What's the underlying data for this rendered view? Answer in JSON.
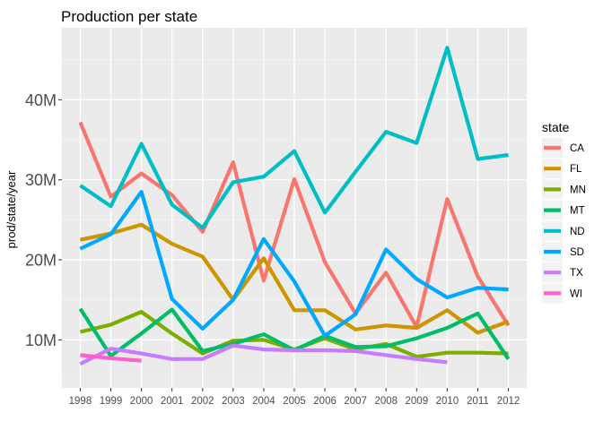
{
  "chart_data": {
    "type": "line",
    "title": "Production per state",
    "xlabel": "",
    "ylabel": "prod/state/year",
    "x": [
      1998,
      1999,
      2000,
      2001,
      2002,
      2003,
      2004,
      2005,
      2006,
      2007,
      2008,
      2009,
      2010,
      2011,
      2012
    ],
    "x_tick_labels": [
      "1998",
      "1999",
      "2000",
      "2001",
      "2002",
      "2003",
      "2004",
      "2005",
      "2006",
      "2007",
      "2008",
      "2009",
      "2010",
      "2011",
      "2012"
    ],
    "y_ticks": [
      10000000,
      20000000,
      30000000,
      40000000
    ],
    "y_tick_labels": [
      "10M",
      "20M",
      "30M",
      "40M"
    ],
    "ylim": [
      4000000,
      49000000
    ],
    "grid": true,
    "legend_title": "state",
    "legend_position": "right",
    "series": [
      {
        "name": "CA",
        "color": "#F8766D",
        "values": [
          37200000,
          27900000,
          30800000,
          28100000,
          23500000,
          32200000,
          17400000,
          30100000,
          19700000,
          13300000,
          18400000,
          11600000,
          27600000,
          17900000,
          11800000
        ]
      },
      {
        "name": "FL",
        "color": "#CD9600",
        "values": [
          22500000,
          23300000,
          24400000,
          22000000,
          20400000,
          15000000,
          20200000,
          13700000,
          13700000,
          11300000,
          11800000,
          11500000,
          13700000,
          10900000,
          12300000
        ]
      },
      {
        "name": "MN",
        "color": "#7CAE00",
        "values": [
          11000000,
          11900000,
          13500000,
          10800000,
          8300000,
          9900000,
          10000000,
          8800000,
          10200000,
          8800000,
          9500000,
          7900000,
          8400000,
          8400000,
          8300000
        ]
      },
      {
        "name": "MT",
        "color": "#00BE67",
        "values": [
          13900000,
          8000000,
          10800000,
          13800000,
          8600000,
          9500000,
          10700000,
          8700000,
          10500000,
          9100000,
          9200000,
          10200000,
          11500000,
          13300000,
          7600000
        ]
      },
      {
        "name": "ND",
        "color": "#00BFC4",
        "values": [
          29300000,
          26700000,
          34500000,
          26900000,
          24000000,
          29700000,
          30400000,
          33600000,
          25900000,
          31000000,
          36000000,
          34600000,
          46500000,
          32600000,
          33100000
        ]
      },
      {
        "name": "SD",
        "color": "#00A9FF",
        "values": [
          21400000,
          23200000,
          28500000,
          15100000,
          11400000,
          15000000,
          22600000,
          17300000,
          10500000,
          13200000,
          21300000,
          17600000,
          15300000,
          16500000,
          16300000
        ]
      },
      {
        "name": "TX",
        "color": "#C77CFF",
        "values": [
          7000000,
          8900000,
          8300000,
          7600000,
          7600000,
          9300000,
          8800000,
          8700000,
          8700000,
          8600000,
          8100000,
          7600000,
          7200000,
          null,
          null
        ]
      },
      {
        "name": "WI",
        "color": "#FF61CC",
        "values": [
          8100000,
          7700000,
          7400000,
          null,
          null,
          null,
          null,
          null,
          null,
          null,
          null,
          null,
          null,
          null,
          null
        ]
      }
    ]
  }
}
